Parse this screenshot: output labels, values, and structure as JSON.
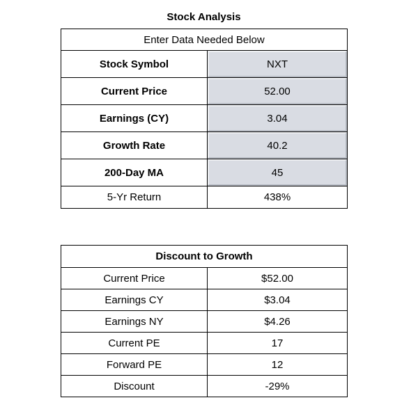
{
  "header": {
    "title": "Stock Analysis"
  },
  "table1": {
    "caption": "Enter Data Needed Below",
    "rows": [
      [
        "Stock Symbol",
        "NXT"
      ],
      [
        "Current Price",
        "52.00"
      ],
      [
        "Earnings (CY)",
        "3.04"
      ],
      [
        "Growth Rate",
        "40.2"
      ],
      [
        "200-Day MA",
        "45"
      ],
      [
        "5-Yr Return",
        "438%"
      ]
    ]
  },
  "table2": {
    "caption": "Discount to Growth",
    "rows": [
      [
        "Current Price",
        "$52.00"
      ],
      [
        "Earnings CY",
        "$3.04"
      ],
      [
        "Earnings NY",
        "$4.26"
      ],
      [
        "Current PE",
        "17"
      ],
      [
        "Forward PE",
        "12"
      ],
      [
        "Discount",
        "-29%"
      ]
    ]
  }
}
